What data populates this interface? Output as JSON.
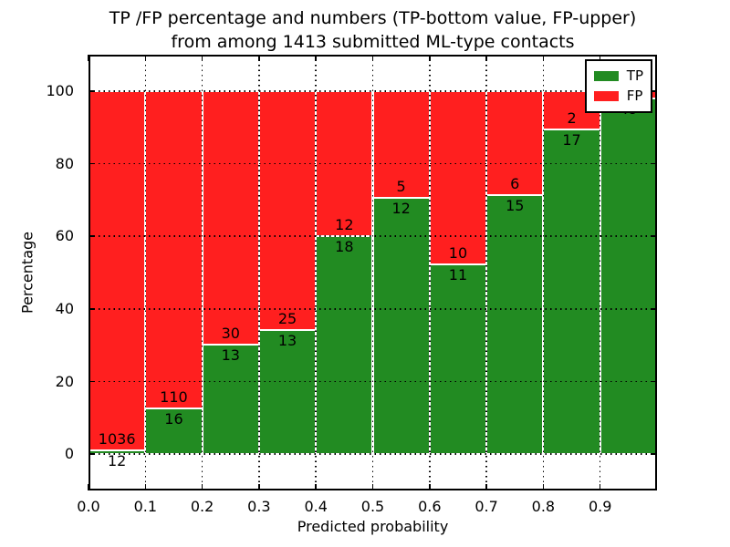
{
  "chart_data": {
    "type": "bar",
    "stacked": true,
    "normalized_to_100": true,
    "title_lines": [
      "TP /FP percentage and numbers (TP-bottom value, FP-upper)",
      "from among 1413 submitted ML-type contacts"
    ],
    "total_submitted": 1413,
    "xlabel": "Predicted probability",
    "ylabel": "Percentage",
    "xlim": [
      0.0,
      1.0
    ],
    "ylim": [
      -10,
      110
    ],
    "bin_width": 0.1,
    "categories": [
      0.0,
      0.1,
      0.2,
      0.3,
      0.4,
      0.5,
      0.6,
      0.7,
      0.8,
      0.9
    ],
    "x_ticks": [
      "0.0",
      "0.1",
      "0.2",
      "0.3",
      "0.4",
      "0.5",
      "0.6",
      "0.7",
      "0.8",
      "0.9"
    ],
    "y_ticks": [
      "0",
      "20",
      "40",
      "60",
      "80",
      "100"
    ],
    "series": [
      {
        "name": "TP",
        "color": "#228b22",
        "counts": [
          12,
          16,
          13,
          13,
          18,
          12,
          11,
          15,
          17,
          49
        ]
      },
      {
        "name": "FP",
        "color": "#ff1f1f",
        "counts": [
          1036,
          110,
          30,
          25,
          12,
          5,
          10,
          6,
          2,
          1
        ]
      }
    ],
    "legend": {
      "location": "upper right",
      "entries": [
        {
          "label": "TP",
          "color": "#228b22"
        },
        {
          "label": "FP",
          "color": "#ff1f1f"
        }
      ]
    },
    "grid": {
      "linestyle": "dotted",
      "color": "#000000"
    }
  }
}
